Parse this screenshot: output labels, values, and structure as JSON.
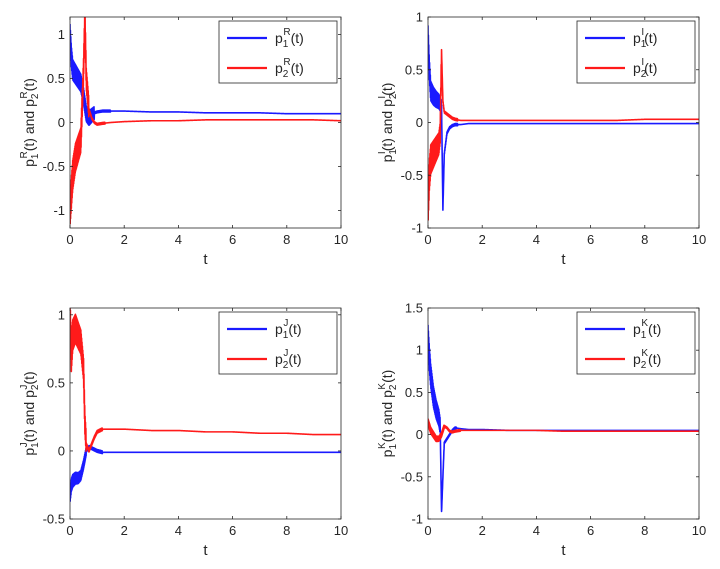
{
  "colors": {
    "series1": "#1a1aff",
    "series2": "#ff1a1a",
    "axis": "#262626",
    "background": "#ffffff"
  },
  "chart_data": [
    {
      "type": "line",
      "ylabel": "p₁ᴿ(t) and p₂ᴿ(t)",
      "ylabel_parts": {
        "a": "p",
        "a_sub": "1",
        "a_sup": "R",
        "mid": "(t) and p",
        "b_sub": "2",
        "b_sup": "R",
        "end": "(t)"
      },
      "xlabel": "t",
      "xlim": [
        0,
        10
      ],
      "ylim": [
        -1.2,
        1.2
      ],
      "xticks": [
        0,
        2,
        4,
        6,
        8,
        10
      ],
      "yticks": [
        -1,
        -0.5,
        0,
        0.5,
        1
      ],
      "ytick_labels": [
        "-1",
        "-0.5",
        "0",
        "0.5",
        "1"
      ],
      "legend_position": "top-right",
      "series": [
        {
          "name": "p₁ᴿ(t)",
          "legend": {
            "base": "p",
            "sub": "1",
            "sup": "R",
            "end": "(t)"
          },
          "color": "#1a1aff",
          "x": [
            0,
            0.05,
            0.1,
            0.2,
            0.3,
            0.4,
            0.5,
            0.6,
            0.7,
            0.8,
            0.9,
            1.0,
            1.2,
            1.5,
            2,
            3,
            4,
            5,
            6,
            7,
            8,
            9,
            10
          ],
          "y": [
            1.0,
            0.75,
            0.6,
            0.55,
            0.5,
            0.45,
            0.3,
            0.1,
            0.05,
            0.08,
            0.11,
            0.12,
            0.13,
            0.13,
            0.13,
            0.12,
            0.12,
            0.11,
            0.11,
            0.11,
            0.1,
            0.1,
            0.1
          ],
          "osc_until": 0.9,
          "osc_amp": 0.12
        },
        {
          "name": "p₂ᴿ(t)",
          "legend": {
            "base": "p",
            "sub": "2",
            "sup": "R",
            "end": "(t)"
          },
          "color": "#ff1a1a",
          "x": [
            0,
            0.05,
            0.1,
            0.2,
            0.3,
            0.4,
            0.5,
            0.55,
            0.6,
            0.7,
            0.8,
            0.9,
            1.0,
            1.2,
            1.5,
            2,
            3,
            4,
            5,
            6,
            7,
            8,
            9,
            10
          ],
          "y": [
            -1.0,
            -0.8,
            -0.6,
            -0.4,
            -0.3,
            -0.2,
            0.6,
            1.2,
            0.5,
            0.15,
            0.05,
            0.0,
            -0.02,
            -0.01,
            0.0,
            0.01,
            0.02,
            0.02,
            0.03,
            0.03,
            0.03,
            0.03,
            0.03,
            0.02
          ],
          "osc_until": 0.7,
          "osc_amp": 0.18
        }
      ]
    },
    {
      "type": "line",
      "ylabel": "p₁ᴵ(t) and p₂ᴵ(t)",
      "ylabel_parts": {
        "a": "p",
        "a_sub": "1",
        "a_sup": "I",
        "mid": "(t) and p",
        "b_sub": "2",
        "b_sup": "I",
        "end": "(t)"
      },
      "xlabel": "t",
      "xlim": [
        0,
        10
      ],
      "ylim": [
        -1,
        1
      ],
      "xticks": [
        0,
        2,
        4,
        6,
        8,
        10
      ],
      "yticks": [
        -1,
        -0.5,
        0,
        0.5,
        1
      ],
      "ytick_labels": [
        "-1",
        "-0.5",
        "0",
        "0.5",
        "1"
      ],
      "legend_position": "top-right",
      "series": [
        {
          "name": "p₁ᴵ(t)",
          "legend": {
            "base": "p",
            "sub": "1",
            "sup": "I",
            "end": "(t)"
          },
          "color": "#1a1aff",
          "x": [
            0,
            0.05,
            0.1,
            0.2,
            0.3,
            0.4,
            0.5,
            0.55,
            0.6,
            0.7,
            0.8,
            0.9,
            1.0,
            1.2,
            1.5,
            2,
            3,
            4,
            5,
            6,
            7,
            8,
            9,
            10
          ],
          "y": [
            0.82,
            0.5,
            0.3,
            0.25,
            0.22,
            0.2,
            0.15,
            -0.82,
            -0.3,
            -0.1,
            -0.05,
            -0.03,
            -0.02,
            -0.02,
            -0.01,
            -0.01,
            -0.01,
            -0.01,
            -0.01,
            -0.01,
            -0.01,
            -0.01,
            -0.01,
            -0.01
          ],
          "osc_until": 0.5,
          "osc_amp": 0.1
        },
        {
          "name": "p₂ᴵ(t)",
          "legend": {
            "base": "p",
            "sub": "2",
            "sup": "I",
            "end": "(t)"
          },
          "color": "#ff1a1a",
          "x": [
            0,
            0.05,
            0.1,
            0.2,
            0.3,
            0.4,
            0.45,
            0.5,
            0.55,
            0.6,
            0.7,
            0.8,
            0.9,
            1.0,
            1.2,
            1.5,
            2,
            3,
            4,
            5,
            6,
            7,
            8,
            9,
            10
          ],
          "y": [
            -0.82,
            -0.5,
            -0.35,
            -0.3,
            -0.25,
            -0.2,
            -0.1,
            0.68,
            0.2,
            0.1,
            0.08,
            0.06,
            0.04,
            0.03,
            0.02,
            0.02,
            0.02,
            0.02,
            0.02,
            0.02,
            0.02,
            0.02,
            0.03,
            0.03,
            0.03
          ],
          "osc_until": 0.5,
          "osc_amp": 0.15
        }
      ]
    },
    {
      "type": "line",
      "ylabel": "p₁ᴶ(t) and p₂ᴶ(t)",
      "ylabel_parts": {
        "a": "p",
        "a_sub": "1",
        "a_sup": "J",
        "mid": "(t) and p",
        "b_sub": "2",
        "b_sup": "J",
        "end": "(t)"
      },
      "xlabel": "t",
      "xlim": [
        0,
        10
      ],
      "ylim": [
        -0.5,
        1.05
      ],
      "xticks": [
        0,
        2,
        4,
        6,
        8,
        10
      ],
      "yticks": [
        -0.5,
        0,
        0.5,
        1
      ],
      "ytick_labels": [
        "-0.5",
        "0",
        "0.5",
        "1"
      ],
      "legend_position": "top-right",
      "series": [
        {
          "name": "p₁ᴶ(t)",
          "legend": {
            "base": "p",
            "sub": "1",
            "sup": "J",
            "end": "(t)"
          },
          "color": "#1a1aff",
          "x": [
            0,
            0.05,
            0.1,
            0.2,
            0.3,
            0.4,
            0.5,
            0.6,
            0.7,
            0.8,
            0.9,
            1.0,
            1.2,
            1.5,
            2,
            3,
            4,
            5,
            6,
            7,
            8,
            9,
            10
          ],
          "y": [
            -0.33,
            -0.25,
            -0.22,
            -0.2,
            -0.2,
            -0.18,
            -0.1,
            0.0,
            0.03,
            0.02,
            0.01,
            0.0,
            -0.01,
            -0.01,
            -0.01,
            -0.01,
            -0.01,
            -0.01,
            -0.01,
            -0.01,
            -0.01,
            -0.01,
            -0.01
          ],
          "osc_until": 0.6,
          "osc_amp": 0.05
        },
        {
          "name": "p₂ᴶ(t)",
          "legend": {
            "base": "p",
            "sub": "2",
            "sup": "J",
            "end": "(t)"
          },
          "color": "#ff1a1a",
          "x": [
            0,
            0.05,
            0.1,
            0.2,
            0.3,
            0.4,
            0.5,
            0.55,
            0.6,
            0.7,
            0.8,
            0.9,
            1.0,
            1.2,
            1.5,
            2,
            3,
            4,
            5,
            6,
            7,
            8,
            9,
            10
          ],
          "y": [
            1.0,
            0.7,
            0.85,
            0.9,
            0.85,
            0.8,
            0.6,
            0.2,
            0.05,
            0.0,
            0.05,
            0.1,
            0.14,
            0.16,
            0.16,
            0.16,
            0.15,
            0.15,
            0.14,
            0.14,
            0.13,
            0.13,
            0.12,
            0.12
          ],
          "osc_until": 0.6,
          "osc_amp": 0.12
        }
      ]
    },
    {
      "type": "line",
      "ylabel": "p₁ᴷ(t) and p₂ᴷ(t)",
      "ylabel_parts": {
        "a": "p",
        "a_sub": "1",
        "a_sup": "K",
        "mid": "(t) and p",
        "b_sub": "2",
        "b_sup": "K",
        "end": "(t)"
      },
      "xlabel": "t",
      "xlim": [
        0,
        10
      ],
      "ylim": [
        -1,
        1.5
      ],
      "xticks": [
        0,
        2,
        4,
        6,
        8,
        10
      ],
      "yticks": [
        -1,
        -0.5,
        0,
        0.5,
        1,
        1.5
      ],
      "ytick_labels": [
        "-1",
        "-0.5",
        "0",
        "0.5",
        "1",
        "1.5"
      ],
      "legend_position": "top-right",
      "series": [
        {
          "name": "p₁ᴷ(t)",
          "legend": {
            "base": "p",
            "sub": "1",
            "sup": "K",
            "end": "(t)"
          },
          "color": "#1a1aff",
          "x": [
            0,
            0.05,
            0.1,
            0.2,
            0.3,
            0.4,
            0.45,
            0.5,
            0.55,
            0.6,
            0.7,
            0.8,
            0.9,
            1.0,
            1.2,
            1.5,
            2,
            3,
            4,
            5,
            6,
            7,
            8,
            9,
            10
          ],
          "y": [
            1.15,
            0.9,
            0.7,
            0.45,
            0.3,
            0.2,
            0.1,
            -0.92,
            -0.5,
            -0.1,
            -0.05,
            0.0,
            0.05,
            0.08,
            0.07,
            0.06,
            0.06,
            0.05,
            0.05,
            0.05,
            0.05,
            0.05,
            0.05,
            0.05,
            0.05
          ],
          "osc_until": 0.45,
          "osc_amp": 0.15
        },
        {
          "name": "p₂ᴷ(t)",
          "legend": {
            "base": "p",
            "sub": "2",
            "sup": "K",
            "end": "(t)"
          },
          "color": "#ff1a1a",
          "x": [
            0,
            0.05,
            0.1,
            0.2,
            0.3,
            0.4,
            0.5,
            0.6,
            0.7,
            0.8,
            0.9,
            1.0,
            1.2,
            1.5,
            2,
            3,
            4,
            5,
            6,
            7,
            8,
            9,
            10
          ],
          "y": [
            0.15,
            0.1,
            0.05,
            0.0,
            -0.05,
            -0.05,
            0.0,
            0.1,
            0.08,
            0.04,
            0.03,
            0.04,
            0.05,
            0.05,
            0.05,
            0.05,
            0.05,
            0.04,
            0.04,
            0.04,
            0.04,
            0.04,
            0.04
          ],
          "osc_until": 0.6,
          "osc_amp": 0.04
        }
      ]
    }
  ]
}
